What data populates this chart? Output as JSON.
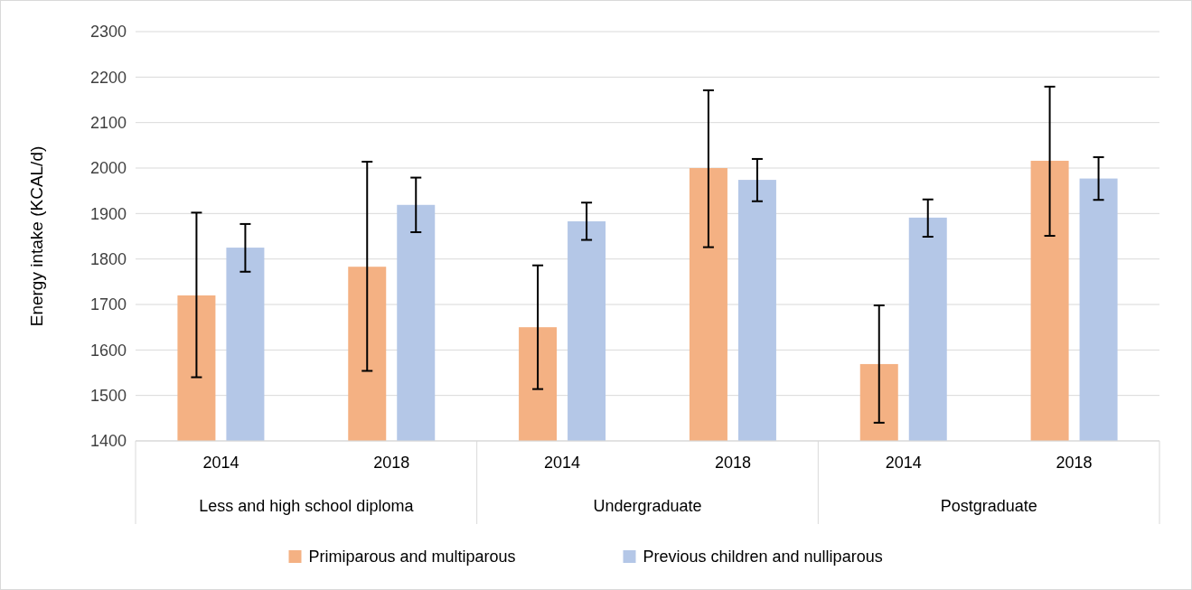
{
  "chart_data": {
    "type": "bar",
    "ylabel": "Energy intake (KCAL/d)",
    "categories": [
      "2014",
      "2018",
      "2014",
      "2018",
      "2014",
      "2018"
    ],
    "annotations": [
      "Less and high school diploma",
      "Undergraduate",
      "Postgraduate"
    ],
    "series": [
      {
        "name": "Primiparous and multiparous",
        "color": "#f4b183",
        "values": [
          1720,
          1783,
          1650,
          2000,
          1569,
          2016
        ],
        "errors": [
          [
            1540,
            1902
          ],
          [
            1554,
            2014
          ],
          [
            1514,
            1786
          ],
          [
            1826,
            2171
          ],
          [
            1440,
            1698
          ],
          [
            1851,
            2179
          ]
        ]
      },
      {
        "name": "Previous children and nulliparous",
        "color": "#b4c7e7",
        "values": [
          1825,
          1919,
          1883,
          1974,
          1891,
          1977
        ],
        "errors": [
          [
            1772,
            1877
          ],
          [
            1859,
            1979
          ],
          [
            1842,
            1924
          ],
          [
            1927,
            2020
          ],
          [
            1849,
            1931
          ],
          [
            1930,
            2024
          ]
        ]
      }
    ],
    "ylim": [
      1400,
      2300
    ],
    "yticks": [
      1400,
      1500,
      1600,
      1700,
      1800,
      1900,
      2000,
      2100,
      2200,
      2300
    ],
    "grid": "y",
    "legend": "bottom"
  }
}
